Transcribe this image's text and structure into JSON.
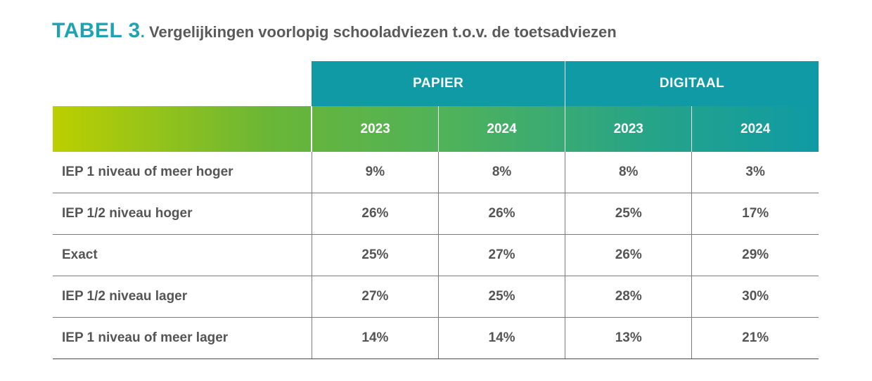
{
  "title": {
    "label": "TABEL 3",
    "separator": ".",
    "text": "Vergelijkingen voorlopig schooladviezen t.o.v. de toetsadviezen"
  },
  "table": {
    "groups": [
      "PAPIER",
      "DIGITAAL"
    ],
    "years": [
      "2023",
      "2024",
      "2023",
      "2024"
    ],
    "rows": [
      {
        "label": "IEP 1 niveau of meer hoger",
        "values": [
          "9%",
          "8%",
          "8%",
          "3%"
        ]
      },
      {
        "label": "IEP 1/2 niveau hoger",
        "values": [
          "26%",
          "26%",
          "25%",
          "17%"
        ]
      },
      {
        "label": "Exact",
        "values": [
          "25%",
          "27%",
          "26%",
          "29%"
        ]
      },
      {
        "label": "IEP 1/2 niveau lager",
        "values": [
          "27%",
          "25%",
          "28%",
          "30%"
        ]
      },
      {
        "label": "IEP 1 niveau of meer lager",
        "values": [
          "14%",
          "14%",
          "13%",
          "21%"
        ]
      }
    ]
  },
  "colors": {
    "teal": "#0f9aa5",
    "green": "#bccf00",
    "text": "#555555"
  }
}
